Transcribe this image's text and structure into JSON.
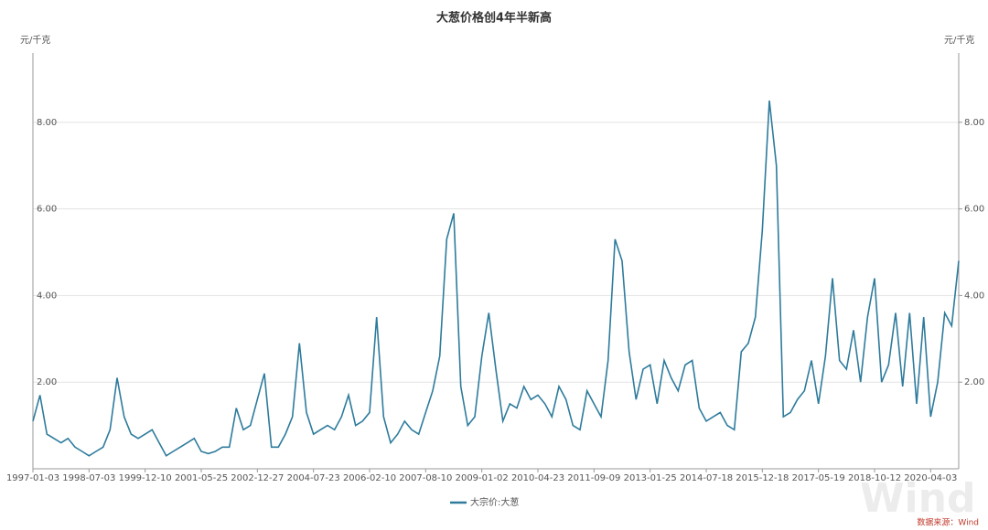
{
  "chart_data": {
    "type": "line",
    "title": "大葱价格创4年半新高",
    "ylabel": "元/千克",
    "y2label": "元/千克",
    "source": "数据来源：Wind",
    "watermark": "Wind",
    "categories": [
      "1997-01-03",
      null,
      null,
      null,
      null,
      null,
      null,
      null,
      "1998-07-03",
      null,
      null,
      null,
      null,
      null,
      null,
      null,
      "1999-12-10",
      null,
      null,
      null,
      null,
      null,
      null,
      null,
      "2001-05-25",
      null,
      null,
      null,
      null,
      null,
      null,
      null,
      "2002-12-27",
      null,
      null,
      null,
      null,
      null,
      null,
      null,
      "2004-07-23",
      null,
      null,
      null,
      null,
      null,
      null,
      null,
      "2006-02-10",
      null,
      null,
      null,
      null,
      null,
      null,
      null,
      "2007-08-10",
      null,
      null,
      null,
      null,
      null,
      null,
      null,
      "2009-01-02",
      null,
      null,
      null,
      null,
      null,
      null,
      null,
      "2010-04-23",
      null,
      null,
      null,
      null,
      null,
      null,
      null,
      "2011-09-09",
      null,
      null,
      null,
      null,
      null,
      null,
      null,
      "2013-01-25",
      null,
      null,
      null,
      null,
      null,
      null,
      null,
      "2014-07-18",
      null,
      null,
      null,
      null,
      null,
      null,
      null,
      "2015-12-18",
      null,
      null,
      null,
      null,
      null,
      null,
      null,
      "2017-05-19",
      null,
      null,
      null,
      null,
      null,
      null,
      null,
      "2018-10-12",
      null,
      null,
      null,
      null,
      null,
      null,
      null,
      "2020-04-03",
      null,
      null,
      null,
      null
    ],
    "series": [
      {
        "name": "大宗价:大葱",
        "color": "#2e7b9c",
        "values": [
          1.1,
          1.7,
          0.8,
          0.7,
          0.6,
          0.7,
          0.5,
          0.4,
          0.3,
          0.4,
          0.5,
          0.9,
          2.1,
          1.2,
          0.8,
          0.7,
          0.8,
          0.9,
          0.6,
          0.3,
          0.4,
          0.5,
          0.6,
          0.7,
          0.4,
          0.35,
          0.4,
          0.5,
          0.5,
          1.4,
          0.9,
          1.0,
          1.6,
          2.2,
          0.5,
          0.5,
          0.8,
          1.2,
          2.9,
          1.3,
          0.8,
          0.9,
          1.0,
          0.9,
          1.2,
          1.7,
          1.0,
          1.1,
          1.3,
          3.5,
          1.2,
          0.6,
          0.8,
          1.1,
          0.9,
          0.8,
          1.3,
          1.8,
          2.6,
          5.3,
          5.9,
          1.9,
          1.0,
          1.2,
          2.6,
          3.6,
          2.3,
          1.1,
          1.5,
          1.4,
          1.9,
          1.6,
          1.7,
          1.5,
          1.2,
          1.9,
          1.6,
          1.0,
          0.9,
          1.8,
          1.5,
          1.2,
          2.5,
          5.3,
          4.8,
          2.7,
          1.6,
          2.3,
          2.4,
          1.5,
          2.5,
          2.1,
          1.8,
          2.4,
          2.5,
          1.4,
          1.1,
          1.2,
          1.3,
          1.0,
          0.9,
          2.7,
          2.9,
          3.5,
          5.5,
          8.5,
          7.0,
          1.2,
          1.3,
          1.6,
          1.8,
          2.5,
          1.5,
          2.6,
          4.4,
          2.5,
          2.3,
          3.2,
          2.0,
          3.5,
          4.4,
          2.0,
          2.4,
          3.6,
          1.9,
          3.6,
          1.5,
          3.5,
          1.2,
          2.0,
          3.6,
          3.3,
          4.8
        ]
      }
    ],
    "ylim": [
      0,
      9.6
    ],
    "yticks": [
      {
        "value": 2,
        "label": "2.00"
      },
      {
        "value": 4,
        "label": "4.00"
      },
      {
        "value": 6,
        "label": "6.00"
      },
      {
        "value": 8,
        "label": "8.00"
      }
    ],
    "y2lim": [
      0,
      9.6
    ],
    "y2ticks": [
      {
        "value": 2,
        "label": "2.00"
      },
      {
        "value": 4,
        "label": "4.00"
      },
      {
        "value": 6,
        "label": "6.00"
      },
      {
        "value": 8,
        "label": "8.00"
      }
    ],
    "grid": true,
    "legend": "bottom"
  }
}
